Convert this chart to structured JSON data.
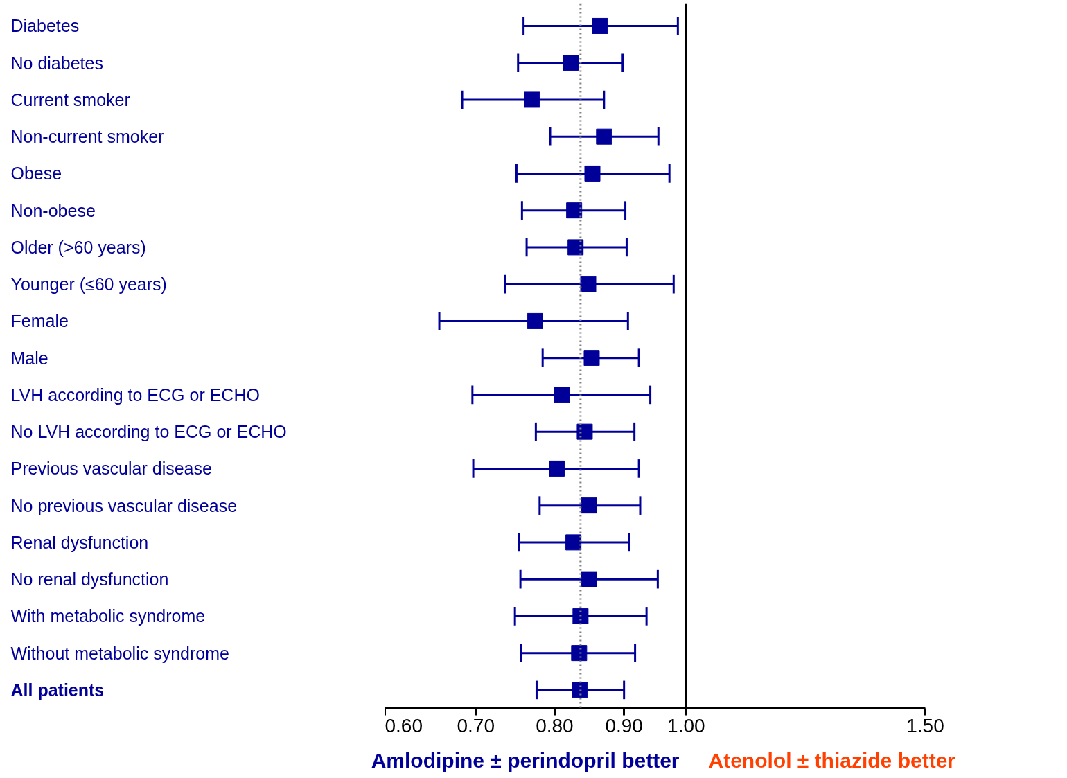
{
  "chart_data": {
    "type": "scatter",
    "orientation": "horizontal",
    "log": "x",
    "marker": "square",
    "grid": false,
    "categories": [
      "Diabetes",
      "No diabetes",
      "Current smoker",
      "Non-current smoker",
      "Obese",
      "Non-obese",
      "Older (>60 years)",
      "Younger (≤60 years)",
      "Female",
      "Male",
      "LVH according to ECG or ECHO",
      "No LVH according to ECG or ECHO",
      "Previous vascular disease",
      "No previous vascular disease",
      "Renal dysfunction",
      "No renal dysfunction",
      "With metabolic syndrome",
      "Without metabolic syndrome",
      "All patients"
    ],
    "series": [
      {
        "color": "#000099",
        "values": [
          0.864,
          0.822,
          0.77,
          0.87,
          0.853,
          0.827,
          0.829,
          0.847,
          0.774,
          0.852,
          0.81,
          0.842,
          0.803,
          0.848,
          0.826,
          0.848,
          0.836,
          0.834,
          0.835
        ],
        "errors": [
          [
            0.759,
            0.986
          ],
          [
            0.752,
            0.898
          ],
          [
            0.684,
            0.87
          ],
          [
            0.794,
            0.954
          ],
          [
            0.75,
            0.972
          ],
          [
            0.757,
            0.902
          ],
          [
            0.763,
            0.904
          ],
          [
            0.736,
            0.979
          ],
          [
            0.658,
            0.906
          ],
          [
            0.784,
            0.923
          ],
          [
            0.696,
            0.941
          ],
          [
            0.775,
            0.916
          ],
          [
            0.697,
            0.923
          ],
          [
            0.78,
            0.925
          ],
          [
            0.753,
            0.908
          ],
          [
            0.755,
            0.953
          ],
          [
            0.748,
            0.935
          ],
          [
            0.756,
            0.917
          ],
          [
            0.776,
            0.9
          ]
        ]
      }
    ],
    "xlim": [
      0.6,
      1.5
    ],
    "xticks": [
      {
        "value": 0.6,
        "label": "0.60"
      },
      {
        "value": 0.7,
        "label": "0.70"
      },
      {
        "value": 0.8,
        "label": "0.80"
      },
      {
        "value": 0.9,
        "label": "0.90"
      },
      {
        "value": 1.0,
        "label": "1.00"
      },
      {
        "value": 1.5,
        "label": "1.50"
      }
    ],
    "ref_lines": [
      {
        "axis": "x",
        "value": 0.836,
        "color": "#808080",
        "line_style": "dotted"
      },
      {
        "axis": "x",
        "value": 1.0,
        "color": "#000000",
        "line_style": "solid"
      }
    ],
    "annotations": [
      "Amlodipine ± perindopril better",
      "Atenolol ± thiazide better"
    ]
  }
}
